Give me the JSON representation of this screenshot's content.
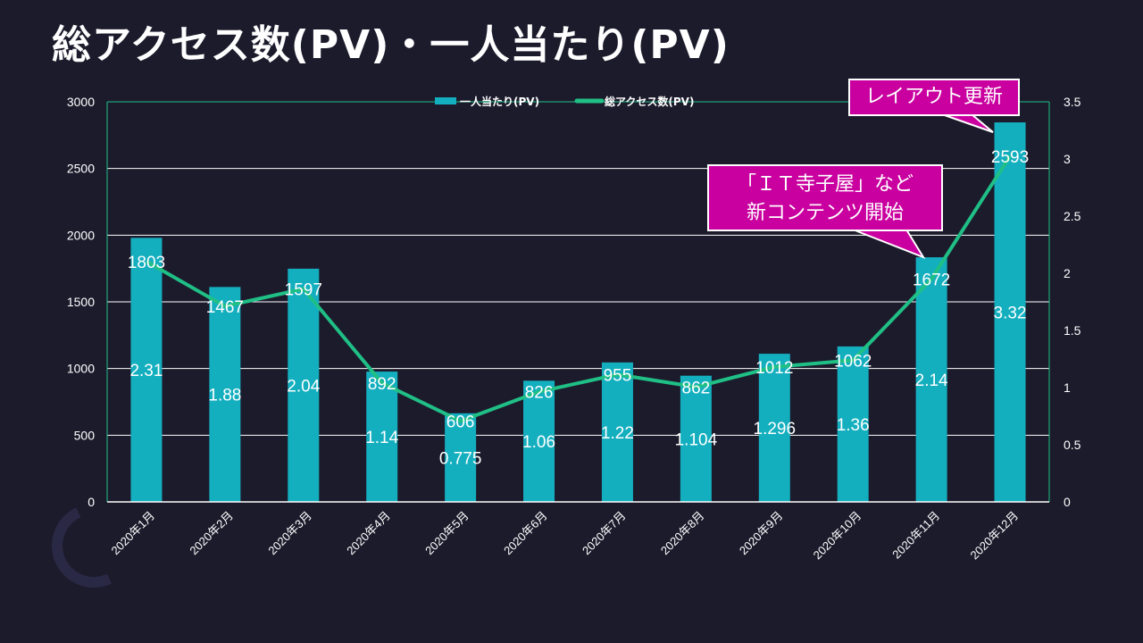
{
  "slide": {
    "title": "総アクセス数(PV)・一人当たり(PV)"
  },
  "callouts": [
    {
      "text": "レイアウト更新",
      "lines": [
        "レイアウト更新"
      ]
    },
    {
      "text": "「ＩＴ寺子屋」など新コンテンツ開始",
      "lines": [
        "「ＩＴ寺子屋」など",
        "新コンテンツ開始"
      ]
    }
  ],
  "colors": {
    "bar": "#14afbf",
    "line": "#1fbf86",
    "callout_fill": "#c9009f",
    "background": "#1c1b2c"
  },
  "chart_data": {
    "type": "bar",
    "title": "総アクセス数(PV)・一人当たり(PV)",
    "categories": [
      "2020年1月",
      "2020年2月",
      "2020年3月",
      "2020年4月",
      "2020年5月",
      "2020年6月",
      "2020年7月",
      "2020年8月",
      "2020年9月",
      "2020年10月",
      "2020年11月",
      "2020年12月"
    ],
    "series": [
      {
        "name": "一人当たり(PV)",
        "type": "bar",
        "axis": "right",
        "values": [
          2.31,
          1.88,
          2.04,
          1.14,
          0.775,
          1.06,
          1.22,
          1.104,
          1.296,
          1.36,
          2.14,
          3.32
        ],
        "labels": [
          "2.31",
          "1.88",
          "2.04",
          "1.14",
          "0.775",
          "1.06",
          "1.22",
          "1.104",
          "1.296",
          "1.36",
          "2.14",
          "3.32"
        ]
      },
      {
        "name": "総アクセス数(PV)",
        "type": "line",
        "axis": "left",
        "values": [
          1803,
          1467,
          1597,
          892,
          606,
          826,
          955,
          862,
          1012,
          1062,
          1672,
          2593
        ],
        "labels": [
          "1803",
          "1467",
          "1597",
          "892",
          "606",
          "826",
          "955",
          "862",
          "1012",
          "1062",
          "1672",
          "2593"
        ]
      }
    ],
    "legend": [
      "一人当たり(PV)",
      "総アクセス数(PV)"
    ],
    "legend_position": "top",
    "yaxis_left": {
      "min": 0,
      "max": 3000,
      "ticks": [
        "0",
        "500",
        "1000",
        "1500",
        "2000",
        "2500",
        "3000"
      ]
    },
    "yaxis_right": {
      "min": 0,
      "max": 3.5,
      "ticks": [
        "0",
        "0.5",
        "1",
        "1.5",
        "2",
        "2.5",
        "3",
        "3.5"
      ]
    },
    "grid": true,
    "annotations": [
      "レイアウト更新",
      "「ＩＴ寺子屋」など新コンテンツ開始"
    ]
  }
}
